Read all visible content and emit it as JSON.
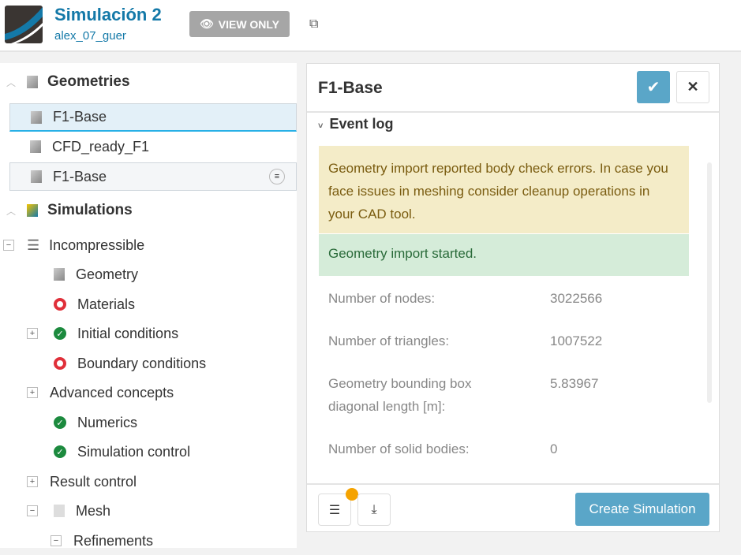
{
  "header": {
    "title": "Simulación 2",
    "user": "alex_07_guer",
    "view_only": "VIEW ONLY"
  },
  "tree": {
    "geometries": "Geometries",
    "geo_items": [
      "F1-Base",
      "CFD_ready_F1",
      "F1-Base"
    ],
    "simulations": "Simulations",
    "items": [
      {
        "label": "Incompressible"
      },
      {
        "label": "Geometry"
      },
      {
        "label": "Materials"
      },
      {
        "label": "Initial conditions"
      },
      {
        "label": "Boundary conditions"
      },
      {
        "label": "Advanced concepts"
      },
      {
        "label": "Numerics"
      },
      {
        "label": "Simulation control"
      },
      {
        "label": "Result control"
      },
      {
        "label": "Mesh"
      },
      {
        "label": "Refinements"
      }
    ]
  },
  "panel": {
    "title": "F1-Base",
    "event_log": "Event log",
    "warning": "Geometry import reported body check errors. In case you face issues in meshing consider cleanup operations in your CAD tool.",
    "info": "Geometry import started.",
    "stats": [
      {
        "k": "Number of nodes:",
        "v": "3022566"
      },
      {
        "k": "Number of triangles:",
        "v": "1007522"
      },
      {
        "k": "Geometry bounding box diagonal length [m]:",
        "v": "5.83967"
      },
      {
        "k": "Number of solid bodies:",
        "v": "0"
      }
    ],
    "create": "Create Simulation"
  }
}
